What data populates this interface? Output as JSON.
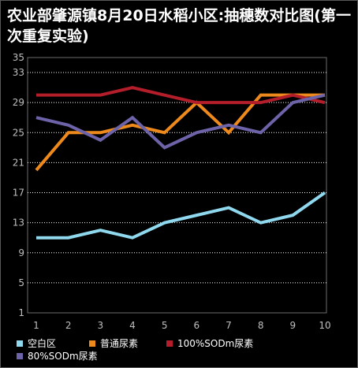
{
  "title": "农业部肇源镇8月20日水稻小区:抽穗数对比图(第一次重复实验)",
  "colors": {
    "background": "#000000",
    "grid": "#ffffff",
    "axis_text": "#bfbfbf"
  },
  "chart_data": {
    "type": "line",
    "title": "农业部肇源镇8月20日水稻小区:抽穗数对比图(第一次重复实验)",
    "xlabel": "",
    "ylabel": "",
    "x": [
      1,
      2,
      3,
      4,
      5,
      6,
      7,
      8,
      9,
      10
    ],
    "ylim": [
      1,
      35
    ],
    "yticks": [
      1,
      5,
      9,
      13,
      17,
      21,
      25,
      29,
      33,
      35
    ],
    "grid": "horizontal dotted",
    "legend_position": "bottom",
    "series": [
      {
        "name": "空白区",
        "color": "#8fd8ee",
        "values": [
          11,
          11,
          12,
          11,
          13,
          14,
          15,
          13,
          14,
          17
        ]
      },
      {
        "name": "普通尿素",
        "color": "#ee8a1c",
        "values": [
          20,
          25,
          25,
          26,
          25,
          29,
          25,
          30,
          30,
          30
        ]
      },
      {
        "name": "100%SODm尿素",
        "color": "#b31e2a",
        "values": [
          30,
          30,
          30,
          31,
          30,
          29,
          29,
          29,
          30,
          29
        ]
      },
      {
        "name": "80%SODm尿素",
        "color": "#6d63a8",
        "values": [
          27,
          26,
          24,
          27,
          23,
          25,
          26,
          25,
          29,
          30
        ]
      }
    ]
  }
}
